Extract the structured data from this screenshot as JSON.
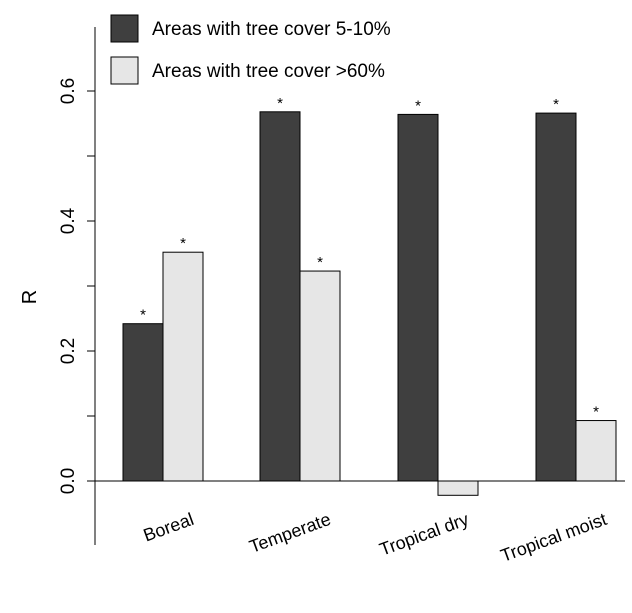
{
  "chart_data": {
    "type": "bar",
    "categories": [
      "Boreal",
      "Temperate",
      "Tropical dry",
      "Tropical moist"
    ],
    "series": [
      {
        "name": "Areas with tree cover 5-10%",
        "color": "#3f3f3f",
        "values": [
          0.242,
          0.568,
          0.564,
          0.566
        ],
        "marks": [
          "*",
          "*",
          "*",
          "*"
        ]
      },
      {
        "name": "Areas with tree cover >60%",
        "color": "#e6e6e6",
        "values": [
          0.352,
          0.323,
          -0.022,
          0.093
        ],
        "marks": [
          "*",
          "*",
          "",
          "*"
        ]
      }
    ],
    "ylabel": "R",
    "yticks": [
      0.0,
      0.2,
      0.4,
      0.6
    ],
    "ytick_labels": [
      "0.0",
      "0.2",
      "0.4",
      "0.6"
    ],
    "ylim": [
      -0.1,
      0.7
    ],
    "legend_position": "top-left",
    "grid": false
  }
}
